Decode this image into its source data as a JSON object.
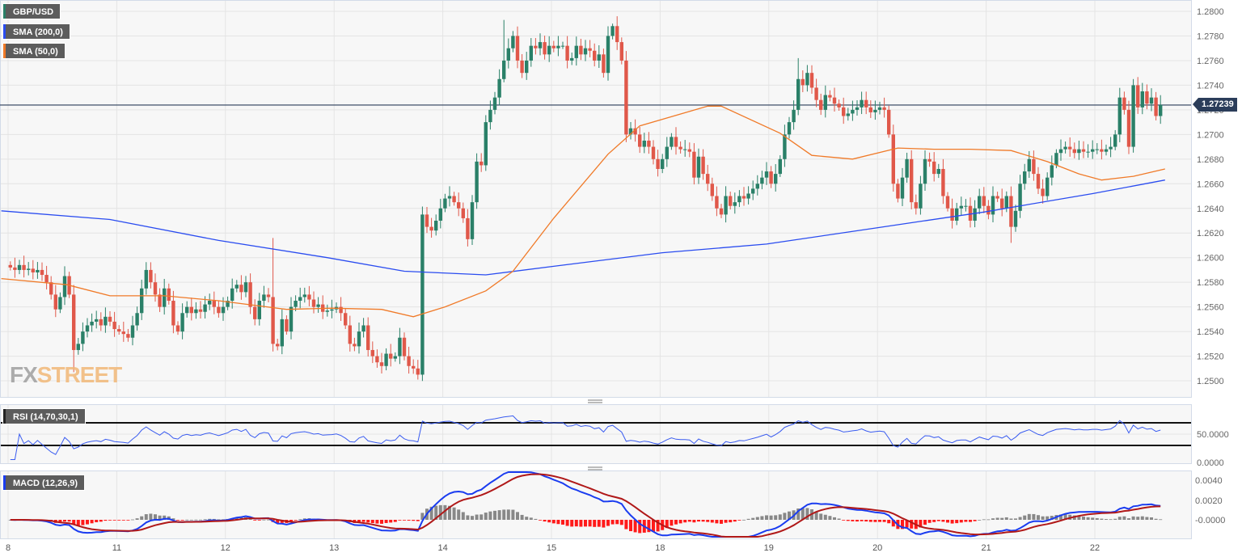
{
  "legend": {
    "symbol": "GBP/USD",
    "sma200": "SMA (200,0)",
    "sma50": "SMA (50,0)",
    "rsi": "RSI (14,70,30,1)",
    "macd": "MACD (12,26,9)"
  },
  "watermark": {
    "part1": "FX",
    "part2": "STREET"
  },
  "colors": {
    "up": "#2a8068",
    "down": "#e0584a",
    "sma200": "#2a4cf0",
    "sma50": "#f07a28",
    "macd_line": "#1a3cf0",
    "signal_line": "#b01818",
    "hist_pos": "#888888",
    "hist_neg": "#ff1a1a",
    "rsi_line": "#3a5cf0",
    "current_price": "#2b3d5a"
  },
  "current_price": "1.27239",
  "chart_data": {
    "type": "candlestick",
    "title": "GBP/USD",
    "days": [
      "8",
      "11",
      "12",
      "13",
      "14",
      "15",
      "18",
      "19",
      "20",
      "21",
      "22"
    ],
    "candles_per_day": 24,
    "ylim": [
      1.249,
      1.2805
    ],
    "price_ticks": [
      "1.2500",
      "1.2520",
      "1.2540",
      "1.2560",
      "1.2580",
      "1.2600",
      "1.2620",
      "1.2640",
      "1.2660",
      "1.2680",
      "1.2700",
      "1.2720",
      "1.2740",
      "1.2760",
      "1.2780",
      "1.2800"
    ],
    "first_open": 1.2594,
    "closes": [
      1.2592,
      1.259,
      1.2594,
      1.259,
      1.2591,
      1.2588,
      1.259,
      1.2586,
      1.258,
      1.257,
      1.2558,
      1.2568,
      1.2585,
      1.257,
      1.2525,
      1.253,
      1.254,
      1.2545,
      1.2548,
      1.255,
      1.2545,
      1.2552,
      1.2548,
      1.2542,
      1.254,
      1.2538,
      1.2535,
      1.2545,
      1.2555,
      1.2575,
      1.259,
      1.258,
      1.257,
      1.256,
      1.2575,
      1.2565,
      1.2545,
      1.254,
      1.2555,
      1.256,
      1.2555,
      1.2558,
      1.2556,
      1.2562,
      1.2565,
      1.256,
      1.2555,
      1.256,
      1.2565,
      1.2575,
      1.2578,
      1.2572,
      1.258,
      1.256,
      1.255,
      1.2565,
      1.257,
      1.2568,
      1.253,
      1.2528,
      1.255,
      1.254,
      1.256,
      1.2565,
      1.2568,
      1.257,
      1.2566,
      1.256,
      1.2562,
      1.2556,
      1.2557,
      1.2558,
      1.256,
      1.2555,
      1.2545,
      1.253,
      1.2528,
      1.254,
      1.2545,
      1.2525,
      1.252,
      1.2515,
      1.2512,
      1.2522,
      1.2518,
      1.252,
      1.2535,
      1.252,
      1.2512,
      1.251,
      1.2505,
      1.2635,
      1.2625,
      1.2622,
      1.263,
      1.264,
      1.2648,
      1.265,
      1.2645,
      1.264,
      1.2632,
      1.2615,
      1.2645,
      1.2678,
      1.2675,
      1.271,
      1.272,
      1.273,
      1.2745,
      1.276,
      1.277,
      1.278,
      1.276,
      1.275,
      1.276,
      1.2772,
      1.277,
      1.2775,
      1.2765,
      1.2772,
      1.277,
      1.2772,
      1.2772,
      1.276,
      1.2762,
      1.2772,
      1.2765,
      1.277,
      1.2768,
      1.276,
      1.2765,
      1.275,
      1.278,
      1.2788,
      1.2775,
      1.276,
      1.27,
      1.2705,
      1.27,
      1.269,
      1.2695,
      1.269,
      1.268,
      1.2672,
      1.268,
      1.269,
      1.2698,
      1.269,
      1.2688,
      1.2688,
      1.2686,
      1.2665,
      1.2682,
      1.2668,
      1.266,
      1.265,
      1.264,
      1.2635,
      1.265,
      1.2642,
      1.2645,
      1.265,
      1.2648,
      1.2652,
      1.2656,
      1.266,
      1.2665,
      1.267,
      1.266,
      1.2668,
      1.268,
      1.27,
      1.271,
      1.272,
      1.2745,
      1.274,
      1.275,
      1.2738,
      1.2728,
      1.272,
      1.2732,
      1.273,
      1.2725,
      1.2722,
      1.2715,
      1.2717,
      1.272,
      1.2722,
      1.2728,
      1.2722,
      1.2718,
      1.272,
      1.2722,
      1.272,
      1.27,
      1.266,
      1.2648,
      1.2665,
      1.268,
      1.2645,
      1.264,
      1.266,
      1.268,
      1.2678,
      1.2668,
      1.2672,
      1.265,
      1.264,
      1.263,
      1.264,
      1.2642,
      1.2642,
      1.263,
      1.264,
      1.265,
      1.2642,
      1.2635,
      1.265,
      1.2648,
      1.264,
      1.265,
      1.2625,
      1.2638,
      1.266,
      1.267,
      1.268,
      1.2668,
      1.2656,
      1.265,
      1.2665,
      1.2675,
      1.2685,
      1.2688,
      1.269,
      1.2688,
      1.2685,
      1.2688,
      1.2686,
      1.2686,
      1.2688,
      1.2688,
      1.2686,
      1.2688,
      1.269,
      1.27,
      1.273,
      1.272,
      1.269,
      1.274,
      1.2722,
      1.2735,
      1.2725,
      1.273,
      1.2715,
      1.2724
    ],
    "extreme_wicks": [
      {
        "index": 58,
        "high": 1.2616
      },
      {
        "index": 14,
        "low": 1.2507
      },
      {
        "index": 90,
        "low": 1.2501
      },
      {
        "index": 109,
        "high": 1.2793
      },
      {
        "index": 133,
        "high": 1.279
      },
      {
        "index": 174,
        "high": 1.2762
      },
      {
        "index": 221,
        "low": 1.2612
      },
      {
        "index": 248,
        "high": 1.2745
      }
    ],
    "sma200": [
      [
        -2,
        1.2638
      ],
      [
        22,
        1.2631
      ],
      [
        46,
        1.2614
      ],
      [
        70,
        1.26
      ],
      [
        87,
        1.2589
      ],
      [
        105,
        1.2586
      ],
      [
        120,
        1.2593
      ],
      [
        144,
        1.2604
      ],
      [
        167,
        1.2611
      ],
      [
        191,
        1.2624
      ],
      [
        215,
        1.2637
      ],
      [
        239,
        1.2652
      ],
      [
        255,
        1.2663
      ]
    ],
    "sma50": [
      [
        -2,
        1.2583
      ],
      [
        12.5,
        1.2578
      ],
      [
        22,
        1.2569
      ],
      [
        34,
        1.2569
      ],
      [
        46,
        1.2565
      ],
      [
        61,
        1.2558
      ],
      [
        71,
        1.2559
      ],
      [
        82,
        1.2558
      ],
      [
        89,
        1.2552
      ],
      [
        96,
        1.256
      ],
      [
        105,
        1.2573
      ],
      [
        111,
        1.2589
      ],
      [
        120,
        1.2632
      ],
      [
        132,
        1.2684
      ],
      [
        139,
        1.2707
      ],
      [
        154,
        1.2723
      ],
      [
        157,
        1.2723
      ],
      [
        170,
        1.2701
      ],
      [
        177,
        1.2683
      ],
      [
        186,
        1.268
      ],
      [
        196,
        1.2689
      ],
      [
        204,
        1.2688
      ],
      [
        212,
        1.2688
      ],
      [
        221,
        1.2687
      ],
      [
        229,
        1.2678
      ],
      [
        236,
        1.2668
      ],
      [
        241,
        1.2663
      ],
      [
        248,
        1.2666
      ],
      [
        255,
        1.2672
      ]
    ],
    "rsi": {
      "period": 14,
      "upper": 70,
      "lower": 30,
      "ticks": [
        "50.0000",
        "0.0000"
      ]
    },
    "macd": {
      "fast": 12,
      "slow": 26,
      "signal": 9,
      "ticks": [
        "0.0040",
        "0.0020",
        "-0.0000"
      ]
    }
  }
}
